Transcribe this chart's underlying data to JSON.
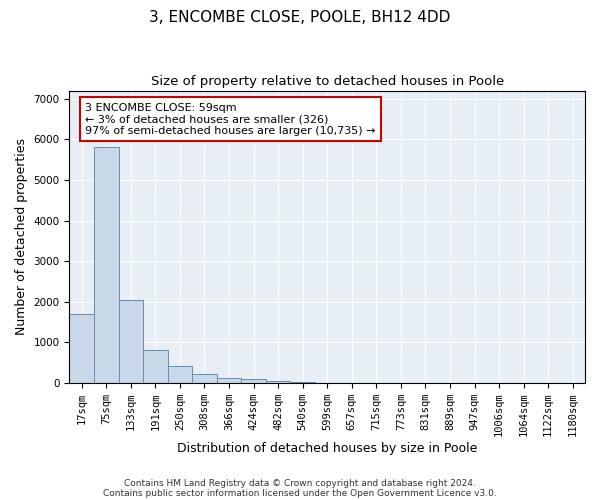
{
  "title": "3, ENCOMBE CLOSE, POOLE, BH12 4DD",
  "subtitle": "Size of property relative to detached houses in Poole",
  "xlabel": "Distribution of detached houses by size in Poole",
  "ylabel": "Number of detached properties",
  "categories": [
    "17sqm",
    "75sqm",
    "133sqm",
    "191sqm",
    "250sqm",
    "308sqm",
    "366sqm",
    "424sqm",
    "482sqm",
    "540sqm",
    "599sqm",
    "657sqm",
    "715sqm",
    "773sqm",
    "831sqm",
    "889sqm",
    "947sqm",
    "1006sqm",
    "1064sqm",
    "1122sqm",
    "1180sqm"
  ],
  "values": [
    1700,
    5800,
    2050,
    800,
    430,
    230,
    130,
    90,
    60,
    20,
    10,
    8,
    5,
    3,
    2,
    1,
    1,
    1,
    1,
    1,
    1
  ],
  "bar_color": "#c8d8e8",
  "bar_edge_color": "#6090b0",
  "annotation_line1": "3 ENCOMBE CLOSE: 59sqm",
  "annotation_line2": "← 3% of detached houses are smaller (326)",
  "annotation_line3": "97% of semi-detached houses are larger (10,735) →",
  "annotation_box_color": "#ffffff",
  "annotation_box_edge": "#cc0000",
  "ylim": [
    0,
    7200
  ],
  "footer1": "Contains HM Land Registry data © Crown copyright and database right 2024.",
  "footer2": "Contains public sector information licensed under the Open Government Licence v3.0.",
  "bg_color": "#ffffff",
  "plot_bg_color": "#e8eef5",
  "grid_color": "#ffffff",
  "title_fontsize": 11,
  "subtitle_fontsize": 9.5,
  "axis_label_fontsize": 9,
  "tick_fontsize": 7.5,
  "annotation_fontsize": 8,
  "footer_fontsize": 6.5
}
